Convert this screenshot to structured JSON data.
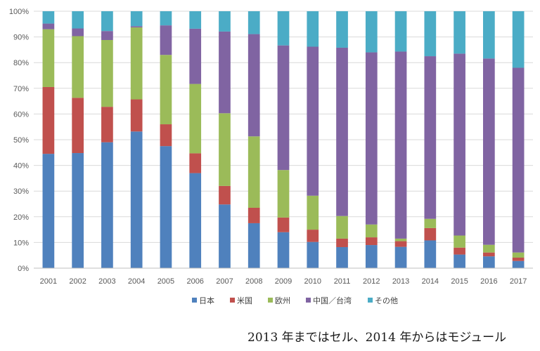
{
  "chart_data": {
    "type": "bar",
    "stacked": true,
    "normalized": true,
    "categories": [
      "2001",
      "2002",
      "2003",
      "2004",
      "2005",
      "2006",
      "2007",
      "2008",
      "2009",
      "2010",
      "2011",
      "2012",
      "2013",
      "2014",
      "2015",
      "2016",
      "2017"
    ],
    "ylim": [
      0,
      100
    ],
    "yticks": [
      "0%",
      "10%",
      "20%",
      "30%",
      "40%",
      "50%",
      "60%",
      "70%",
      "80%",
      "90%",
      "100%"
    ],
    "grid": true,
    "legend_position": "bottom",
    "series": [
      {
        "name": "日本",
        "color": "#4f81bd",
        "values": [
          44.5,
          44.8,
          49,
          53.2,
          47.5,
          37,
          24.8,
          17.5,
          14,
          10.2,
          8.2,
          9,
          8.3,
          10.8,
          5.3,
          4.6,
          2.8
        ]
      },
      {
        "name": "米国",
        "color": "#c0504d",
        "values": [
          26,
          21.5,
          13.8,
          12.5,
          8.5,
          7.7,
          7.2,
          6,
          5.7,
          4.8,
          3.3,
          3,
          2.2,
          4.8,
          2.7,
          1.5,
          1.3
        ]
      },
      {
        "name": "欧州",
        "color": "#9bbb59",
        "values": [
          22.5,
          24,
          26,
          28,
          27,
          27,
          28.3,
          27.8,
          18.5,
          13.2,
          8.8,
          5,
          1,
          3.6,
          4.7,
          3,
          2
        ]
      },
      {
        "name": "中国／台湾",
        "color": "#8064a2",
        "values": [
          2.2,
          3,
          3.5,
          0.5,
          11.5,
          21.5,
          31.8,
          39.8,
          48.5,
          58,
          65.5,
          67,
          72.8,
          63.3,
          70.8,
          72.5,
          71.9
        ]
      },
      {
        "name": "その他",
        "color": "#4bacc6",
        "values": [
          4.8,
          6.7,
          7.7,
          5.8,
          5.5,
          6.8,
          7.9,
          8.9,
          13.3,
          13.8,
          14.2,
          16,
          15.7,
          17.5,
          16.5,
          18.4,
          22
        ]
      }
    ]
  },
  "note": "2013 年まではセル、2014 年からはモジュール"
}
